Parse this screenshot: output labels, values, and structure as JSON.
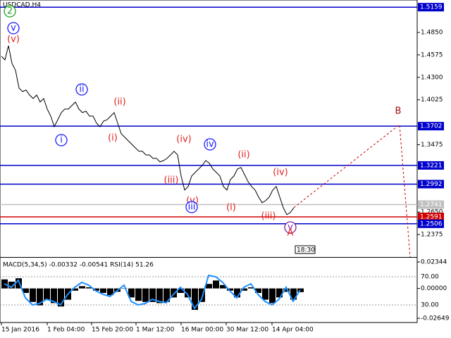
{
  "chart_data": {
    "type": "line",
    "title": "USDCAD,H4",
    "ylim": [
      1.2099,
      1.5247
    ],
    "yticks": [
      {
        "value": 1.485,
        "label": "1.4850"
      },
      {
        "value": 1.4575,
        "label": "1.4575"
      },
      {
        "value": 1.43,
        "label": "1.4300"
      },
      {
        "value": 1.4025,
        "label": "1.4025"
      },
      {
        "value": 1.3475,
        "label": "1.3475"
      },
      {
        "value": 1.265,
        "label": "1.2650"
      },
      {
        "value": 1.2375,
        "label": "1.2375"
      }
    ],
    "levels": [
      {
        "value": 1.5159,
        "label": "1.5159",
        "color": "#0000cc"
      },
      {
        "value": 1.3702,
        "label": "1.3702",
        "color": "#0000cc"
      },
      {
        "value": 1.3221,
        "label": "1.3221",
        "color": "#0000cc"
      },
      {
        "value": 1.2992,
        "label": "1.2992",
        "color": "#0000cc"
      },
      {
        "value": 1.2741,
        "label": "1.2741",
        "color": "#c0c0c0"
      },
      {
        "value": 1.2591,
        "label": "1.2591",
        "color": "#d00000"
      },
      {
        "value": 1.2506,
        "label": "1.2506",
        "color": "#0000cc"
      }
    ],
    "series": [
      {
        "color": "#000000",
        "values": [
          1.4557,
          1.4514,
          1.4687,
          1.4471,
          1.4385,
          1.4169,
          1.4126,
          1.4144,
          1.4083,
          1.404,
          1.4083,
          1.3997,
          1.404,
          1.3911,
          1.3825,
          1.3695,
          1.3781,
          1.3868,
          1.3911,
          1.3911,
          1.3954,
          1.3997,
          1.3911,
          1.3868,
          1.3885,
          1.3825,
          1.3825,
          1.3738,
          1.3695,
          1.3764,
          1.3781,
          1.3825,
          1.3868,
          1.3738,
          1.3609,
          1.3566,
          1.3523,
          1.348,
          1.3437,
          1.3394,
          1.3394,
          1.335,
          1.335,
          1.3307,
          1.3307,
          1.3264,
          1.3281,
          1.3307,
          1.335,
          1.3394,
          1.335,
          1.3092,
          1.2919,
          1.2963,
          1.3092,
          1.3135,
          1.3178,
          1.3221,
          1.3281,
          1.3247,
          1.3178,
          1.3135,
          1.3092,
          1.2963,
          1.2919,
          1.3049,
          1.3092,
          1.3178,
          1.3195,
          1.3109,
          1.3023,
          1.2963,
          1.2919,
          1.2833,
          1.2764,
          1.279,
          1.2833,
          1.2919,
          1.2963,
          1.2833,
          1.2704,
          1.2618,
          1.2644,
          1.2704
        ]
      }
    ],
    "annotations": [
      {
        "text": "2",
        "color": "#20a020"
      },
      {
        "text": "v",
        "color": "#1a1aff"
      },
      {
        "text": "(v)",
        "color": "#e02020"
      },
      {
        "text": "ii",
        "color": "#1a1aff"
      },
      {
        "text": "(ii)",
        "color": "#e02020"
      },
      {
        "text": "i",
        "color": "#1a1aff"
      },
      {
        "text": "(i)",
        "color": "#e02020"
      },
      {
        "text": "(iv)",
        "color": "#e02020"
      },
      {
        "text": "iv",
        "color": "#1a1aff"
      },
      {
        "text": "(ii)",
        "color": "#e02020"
      },
      {
        "text": "(iii)",
        "color": "#e02020"
      },
      {
        "text": "(v)",
        "color": "#e02020"
      },
      {
        "text": "iii",
        "color": "#1a1aff"
      },
      {
        "text": "(i)",
        "color": "#e02020"
      },
      {
        "text": "(iv)",
        "color": "#e02020"
      },
      {
        "text": "(iii)",
        "color": "#e02020"
      },
      {
        "text": "v",
        "color": "#8020a0"
      },
      {
        "text": "A",
        "color": "#e02020"
      },
      {
        "text": "B",
        "color": "#a01010"
      }
    ],
    "x_labels": [
      "15 Jan 2016",
      "1 Feb 04:00",
      "15 Feb 20:00",
      "1 Mar 12:00",
      "16 Mar 00:00",
      "30 Mar 12:00",
      "14 Apr 04:00"
    ],
    "time_box": "18:30",
    "indicator": {
      "label": "MACD(5,34,5) -0.00332 -0.00541 RSI(14) 51.26",
      "macd_ylim": [
        -0.0302,
        0.0272
      ],
      "macd_ticks": [
        0.02344,
        {
          "value": 0,
          "label": "0.00000"
        },
        -0.02649
      ],
      "rsi_ylim": [
        5,
        97
      ],
      "rsi_ticks": [
        {
          "value": 70,
          "label": "70.00"
        },
        {
          "value": 30,
          "label": "30.00"
        }
      ],
      "macd": [
        0.008,
        0.006,
        0.009,
        -0.004,
        -0.012,
        -0.015,
        -0.01,
        -0.013,
        -0.016,
        -0.01,
        -0.002,
        0.002,
        0.001,
        -0.002,
        -0.004,
        -0.006,
        -0.003,
        0.0,
        -0.008,
        -0.011,
        -0.012,
        -0.012,
        -0.013,
        -0.012,
        -0.008,
        -0.004,
        -0.008,
        -0.019,
        -0.012,
        0.004,
        0.007,
        0.003,
        -0.002,
        -0.008,
        -0.002,
        0.001,
        -0.004,
        -0.01,
        -0.013,
        -0.008,
        -0.003,
        -0.01,
        -0.00332
      ],
      "macd_color": "#000000",
      "rsi": [
        60,
        55,
        65,
        40,
        30,
        32,
        38,
        35,
        30,
        45,
        55,
        62,
        58,
        50,
        45,
        42,
        50,
        58,
        35,
        30,
        32,
        38,
        35,
        33,
        45,
        55,
        45,
        25,
        38,
        72,
        70,
        62,
        50,
        40,
        55,
        60,
        45,
        35,
        30,
        38,
        55,
        35,
        51.26
      ],
      "rsi_color": "#1e90ff"
    }
  }
}
